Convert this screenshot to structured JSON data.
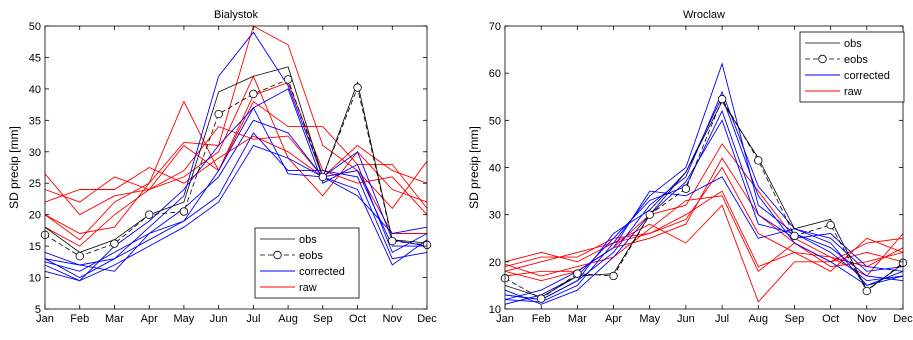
{
  "chart_data": [
    {
      "type": "line",
      "title": "Bialystok",
      "ylabel": "SD precip [mm]",
      "xlabel": "",
      "categories": [
        "Jan",
        "Feb",
        "Mar",
        "Apr",
        "May",
        "Jun",
        "Jul",
        "Aug",
        "Sep",
        "Oct",
        "Nov",
        "Dec"
      ],
      "ylim": [
        5,
        50
      ],
      "yticks": [
        5,
        10,
        15,
        20,
        25,
        30,
        35,
        40,
        45,
        50
      ],
      "grid": false,
      "legend_position": "bottom-right",
      "legend": [
        "obs",
        "eobs",
        "corrected",
        "raw"
      ],
      "series": [
        {
          "name": "obs",
          "style": "obs",
          "values": [
            18,
            14,
            16,
            20,
            22,
            39.5,
            42,
            43.5,
            26,
            41,
            16,
            15.5
          ]
        },
        {
          "name": "eobs",
          "style": "eobs",
          "values": [
            16.8,
            13.4,
            15.4,
            20,
            20.5,
            36,
            39.2,
            41.5,
            26,
            40.2,
            15.8,
            15.2
          ]
        },
        {
          "name": "corrected",
          "style": "corrected",
          "values": [
            13,
            10,
            13,
            18,
            23,
            42,
            49,
            40.5,
            26,
            30,
            16,
            15
          ]
        },
        {
          "style": "corrected",
          "values": [
            12,
            9.5,
            15,
            19,
            24,
            31,
            37,
            40,
            25,
            28,
            14,
            17
          ]
        },
        {
          "style": "corrected",
          "values": [
            12.5,
            11,
            14,
            17,
            21,
            26,
            35,
            33,
            26,
            24,
            12,
            16
          ]
        },
        {
          "style": "corrected",
          "values": [
            13,
            12,
            13,
            16,
            19,
            23,
            33,
            27,
            27,
            26,
            13,
            14
          ]
        },
        {
          "style": "corrected",
          "values": [
            11,
            9.5,
            12,
            15,
            18,
            22,
            31,
            29,
            26,
            23,
            17,
            18
          ]
        },
        {
          "style": "corrected",
          "values": [
            14,
            12,
            11,
            17,
            19,
            27,
            37,
            26.5,
            26,
            27,
            15,
            15
          ]
        },
        {
          "style": "raw",
          "values": [
            20,
            16,
            22,
            25,
            31.5,
            31,
            50,
            47,
            31,
            27,
            17,
            17
          ]
        },
        {
          "style": "raw",
          "values": [
            18,
            15,
            20,
            24,
            31,
            27,
            39,
            41,
            27,
            25,
            26,
            20
          ]
        },
        {
          "style": "raw",
          "values": [
            24,
            22,
            26,
            24,
            26,
            30,
            42,
            29,
            23,
            30,
            24,
            22
          ]
        },
        {
          "style": "raw",
          "values": [
            22,
            24,
            24,
            27.5,
            25,
            29,
            32.5,
            30,
            26,
            31,
            27,
            25
          ]
        },
        {
          "style": "raw",
          "values": [
            20,
            17,
            18,
            25,
            38,
            27,
            38,
            34,
            34,
            28,
            28,
            21
          ]
        },
        {
          "style": "raw",
          "values": [
            26.5,
            20,
            23,
            24,
            27,
            34,
            32,
            32.5,
            26,
            27,
            21,
            28.5
          ]
        }
      ]
    },
    {
      "type": "line",
      "title": "Wroclaw",
      "ylabel": "SD precip [mm]",
      "xlabel": "",
      "categories": [
        "Jan",
        "Feb",
        "Mar",
        "Apr",
        "May",
        "Jun",
        "Jul",
        "Aug",
        "Sep",
        "Oct",
        "Nov",
        "Dec"
      ],
      "ylim": [
        10,
        70
      ],
      "yticks": [
        10,
        20,
        30,
        40,
        50,
        60,
        70
      ],
      "grid": false,
      "legend_position": "top-right",
      "legend": [
        "obs",
        "eobs",
        "corrected",
        "raw"
      ],
      "series": [
        {
          "name": "obs",
          "style": "obs",
          "values": [
            15,
            12.5,
            17,
            17.5,
            30,
            39,
            54,
            42,
            27,
            29,
            14,
            19.5
          ]
        },
        {
          "name": "eobs",
          "style": "eobs",
          "values": [
            16.5,
            12.2,
            17.5,
            17,
            30,
            35.5,
            54.5,
            41.5,
            25.5,
            27.8,
            13.8,
            19.8
          ]
        },
        {
          "name": "corrected",
          "style": "corrected",
          "values": [
            12,
            11.5,
            15,
            24,
            34,
            40,
            62,
            32,
            26,
            23,
            17,
            16
          ]
        },
        {
          "style": "corrected",
          "values": [
            13,
            12,
            16,
            22,
            32,
            38,
            56,
            36,
            27,
            24,
            15,
            18
          ]
        },
        {
          "style": "corrected",
          "values": [
            11,
            13,
            17,
            25,
            33,
            36,
            52,
            30,
            25,
            26,
            19,
            18
          ]
        },
        {
          "style": "corrected",
          "values": [
            14,
            11,
            14,
            21,
            30,
            37,
            50,
            28,
            26,
            22,
            16,
            17
          ]
        },
        {
          "style": "corrected",
          "values": [
            12,
            14,
            18,
            23,
            35,
            34,
            38,
            25,
            27,
            25,
            18,
            19
          ]
        },
        {
          "style": "corrected",
          "values": [
            13,
            12,
            16,
            26,
            31,
            39,
            55,
            34,
            24,
            20,
            15,
            17
          ]
        },
        {
          "style": "raw",
          "values": [
            19,
            21,
            21,
            25,
            26,
            29,
            40,
            26,
            22,
            21,
            19,
            23
          ]
        },
        {
          "style": "raw",
          "values": [
            20,
            22,
            20,
            24,
            26,
            30,
            35,
            19,
            22,
            18,
            25,
            22
          ]
        },
        {
          "style": "raw",
          "values": [
            18,
            20,
            22,
            24,
            28,
            24,
            32,
            11.5,
            20,
            20,
            24,
            25
          ]
        },
        {
          "style": "raw",
          "values": [
            17,
            18,
            18,
            23,
            30,
            32,
            45,
            35,
            25,
            21,
            17,
            26
          ]
        },
        {
          "style": "raw",
          "values": [
            19.5,
            17,
            19,
            21,
            27,
            33,
            34,
            18,
            24,
            20,
            22,
            20
          ]
        },
        {
          "style": "raw",
          "values": [
            18,
            16,
            18,
            23,
            25,
            28,
            42,
            30,
            24,
            19,
            20,
            22
          ]
        }
      ]
    }
  ],
  "colors": {
    "obs": "#000000",
    "eobs": "#000000",
    "corrected": "#0000ff",
    "raw": "#ff0000",
    "axis": "#000000"
  }
}
